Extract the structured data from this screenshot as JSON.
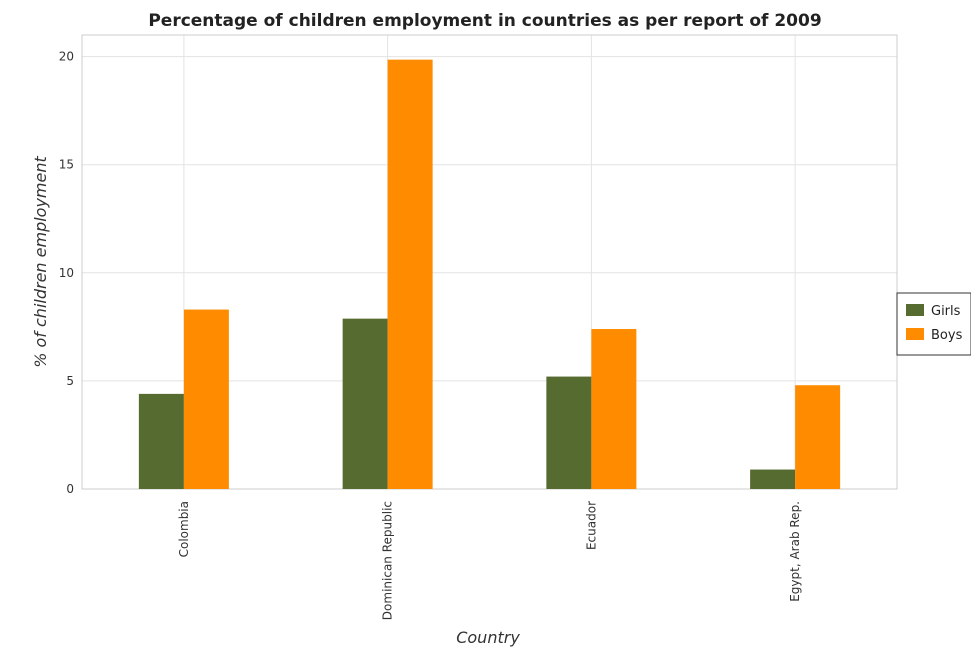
{
  "chart_data": {
    "type": "bar",
    "title": "Percentage of children employment in countries as per report of 2009",
    "xlabel": "Country",
    "ylabel": "% of children employment",
    "categories": [
      "Colombia",
      "Dominican Republic",
      "Ecuador",
      "Egypt, Arab Rep."
    ],
    "series": [
      {
        "name": "Girls",
        "values": [
          4.4,
          7.88,
          5.2,
          0.9
        ],
        "color": "#556b2f"
      },
      {
        "name": "Boys",
        "values": [
          8.3,
          19.86,
          7.4,
          4.8
        ],
        "color": "#ff8c00"
      }
    ],
    "ylim": [
      0,
      21
    ],
    "yticks": [
      0,
      5,
      10,
      15,
      20
    ],
    "grid": true,
    "legend_position": "right"
  }
}
